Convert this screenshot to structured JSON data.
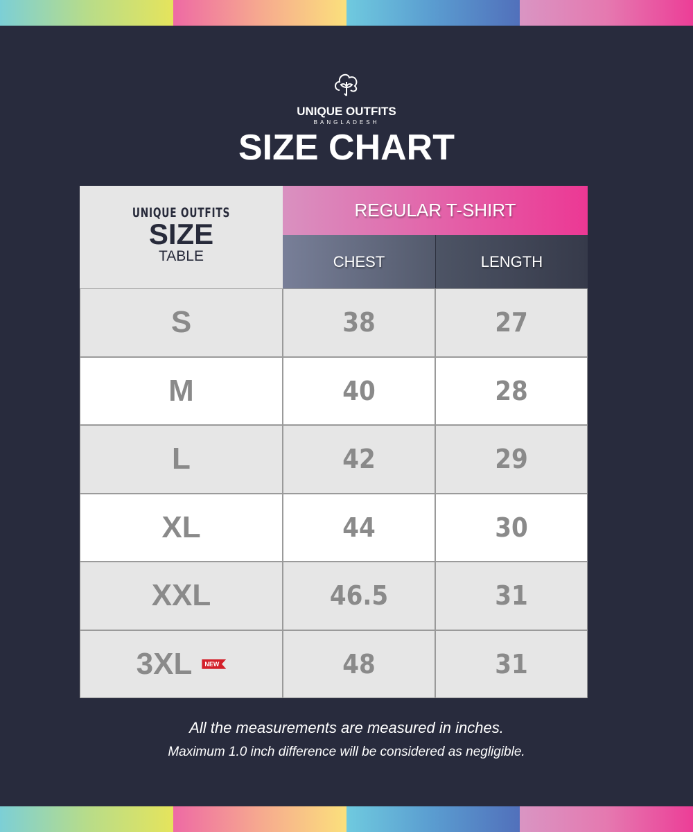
{
  "brand": {
    "name": "UNIQUE OUTFITS",
    "subtitle": "BANGLADESH"
  },
  "title": "SIZE CHART",
  "table": {
    "corner": {
      "line1": "UNIQUE OUTFITS",
      "line2": "SIZE",
      "line3": "TABLE"
    },
    "group_header": "REGULAR T-SHIRT",
    "columns": [
      "CHEST",
      "LENGTH"
    ],
    "rows": [
      {
        "size": "S",
        "chest": "38",
        "length": "27"
      },
      {
        "size": "M",
        "chest": "40",
        "length": "28"
      },
      {
        "size": "L",
        "chest": "42",
        "length": "29"
      },
      {
        "size": "XL",
        "chest": "44",
        "length": "30"
      },
      {
        "size": "XXL",
        "chest": "46.5",
        "length": "31"
      },
      {
        "size": "3XL",
        "chest": "48",
        "length": "31",
        "badge": "NEW"
      }
    ]
  },
  "notes": [
    "All the measurements are measured in inches.",
    "Maximum 1.0 inch difference will be considered as negligible."
  ],
  "colors": {
    "background": "#282b3d",
    "accent_pink": "#ec3894",
    "badge_red": "#d3202a"
  }
}
